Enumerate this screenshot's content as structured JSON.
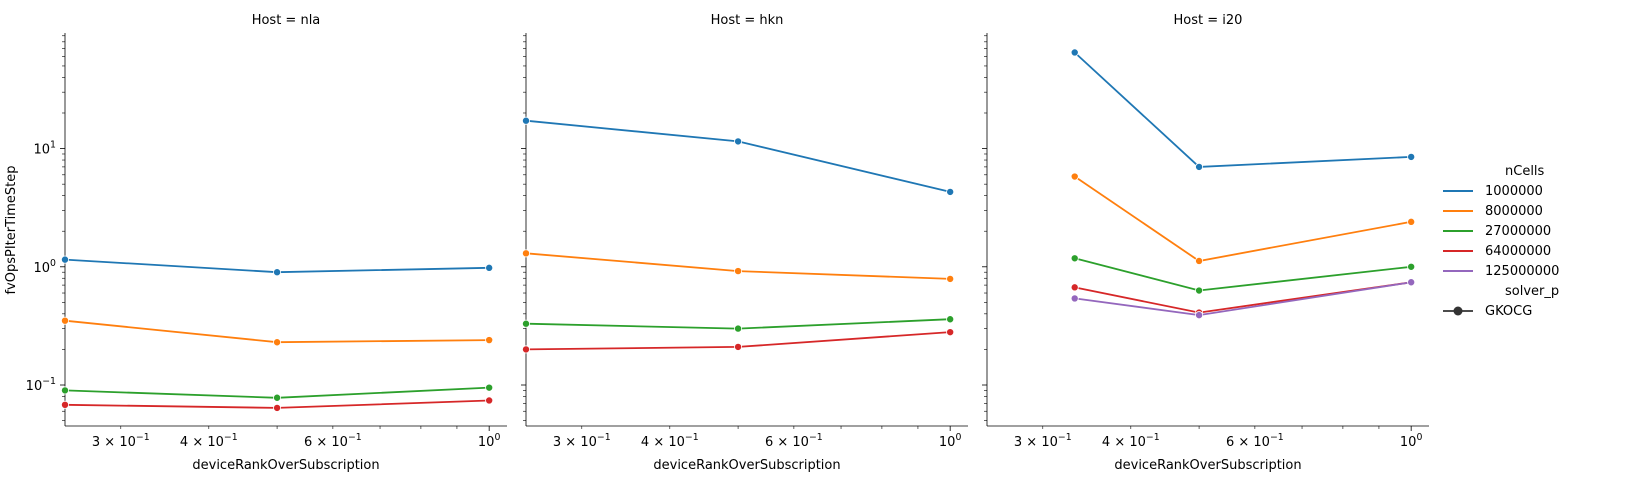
{
  "colors": {
    "1000000": "#1f77b4",
    "8000000": "#ff7f0e",
    "27000000": "#2ca02c",
    "64000000": "#d62728",
    "125000000": "#9467bd",
    "marker": "#333333"
  },
  "ylabel": "fvOpsPIterTimeStep",
  "xlabel": "deviceRankOverSubscription",
  "x_ticks": [
    {
      "value": 0.3,
      "base": "3 × 10",
      "exp": "−1"
    },
    {
      "value": 0.4,
      "base": "4 × 10",
      "exp": "−1"
    },
    {
      "value": 0.6,
      "base": "6 × 10",
      "exp": "−1"
    },
    {
      "value": 1.0,
      "base": "10",
      "exp": "0"
    }
  ],
  "y_ticks": [
    {
      "value": 0.1,
      "base": "10",
      "exp": "−1"
    },
    {
      "value": 1,
      "base": "10",
      "exp": "0"
    },
    {
      "value": 10,
      "base": "10",
      "exp": "1"
    }
  ],
  "legend": {
    "hue_title": "nCells",
    "hue_entries": [
      "1000000",
      "8000000",
      "27000000",
      "64000000",
      "125000000"
    ],
    "style_title": "solver_p",
    "style_entries": [
      "GKOCG"
    ]
  },
  "chart_data": [
    {
      "type": "line",
      "title": "Host = nla",
      "xlabel": "deviceRankOverSubscription",
      "ylabel": "fvOpsPIterTimeStep",
      "xscale": "log",
      "yscale": "log",
      "xlim": [
        0.25,
        1.06
      ],
      "ylim": [
        0.045,
        95
      ],
      "series": [
        {
          "name": "1000000",
          "x": [
            0.25,
            0.5,
            1.0
          ],
          "y": [
            1.15,
            0.9,
            0.98
          ]
        },
        {
          "name": "8000000",
          "x": [
            0.25,
            0.5,
            1.0
          ],
          "y": [
            0.35,
            0.23,
            0.24
          ]
        },
        {
          "name": "27000000",
          "x": [
            0.25,
            0.5,
            1.0
          ],
          "y": [
            0.09,
            0.078,
            0.095
          ]
        },
        {
          "name": "64000000",
          "x": [
            0.25,
            0.5,
            1.0
          ],
          "y": [
            0.068,
            0.064,
            0.074
          ]
        }
      ]
    },
    {
      "type": "line",
      "title": "Host = hkn",
      "xlabel": "deviceRankOverSubscription",
      "ylabel": "",
      "xscale": "log",
      "yscale": "log",
      "xlim": [
        0.25,
        1.06
      ],
      "ylim": [
        0.045,
        95
      ],
      "series": [
        {
          "name": "1000000",
          "x": [
            0.25,
            0.5,
            1.0
          ],
          "y": [
            17.2,
            11.5,
            4.3
          ]
        },
        {
          "name": "8000000",
          "x": [
            0.25,
            0.5,
            1.0
          ],
          "y": [
            1.3,
            0.92,
            0.79
          ]
        },
        {
          "name": "27000000",
          "x": [
            0.25,
            0.5,
            1.0
          ],
          "y": [
            0.33,
            0.3,
            0.36
          ]
        },
        {
          "name": "64000000",
          "x": [
            0.25,
            0.5,
            1.0
          ],
          "y": [
            0.2,
            0.21,
            0.28
          ]
        }
      ]
    },
    {
      "type": "line",
      "title": "Host = i20",
      "xlabel": "deviceRankOverSubscription",
      "ylabel": "",
      "xscale": "log",
      "yscale": "log",
      "xlim": [
        0.25,
        1.06
      ],
      "ylim": [
        0.045,
        95
      ],
      "series": [
        {
          "name": "1000000",
          "x": [
            0.333,
            0.5,
            1.0
          ],
          "y": [
            65,
            7.0,
            8.5
          ]
        },
        {
          "name": "8000000",
          "x": [
            0.333,
            0.5,
            1.0
          ],
          "y": [
            5.8,
            1.12,
            2.4
          ]
        },
        {
          "name": "27000000",
          "x": [
            0.333,
            0.5,
            1.0
          ],
          "y": [
            1.18,
            0.63,
            1.0
          ]
        },
        {
          "name": "64000000",
          "x": [
            0.333,
            0.5,
            1.0
          ],
          "y": [
            0.67,
            0.41,
            0.74
          ]
        },
        {
          "name": "125000000",
          "x": [
            0.333,
            0.5,
            1.0
          ],
          "y": [
            0.54,
            0.39,
            0.74
          ]
        }
      ]
    }
  ]
}
